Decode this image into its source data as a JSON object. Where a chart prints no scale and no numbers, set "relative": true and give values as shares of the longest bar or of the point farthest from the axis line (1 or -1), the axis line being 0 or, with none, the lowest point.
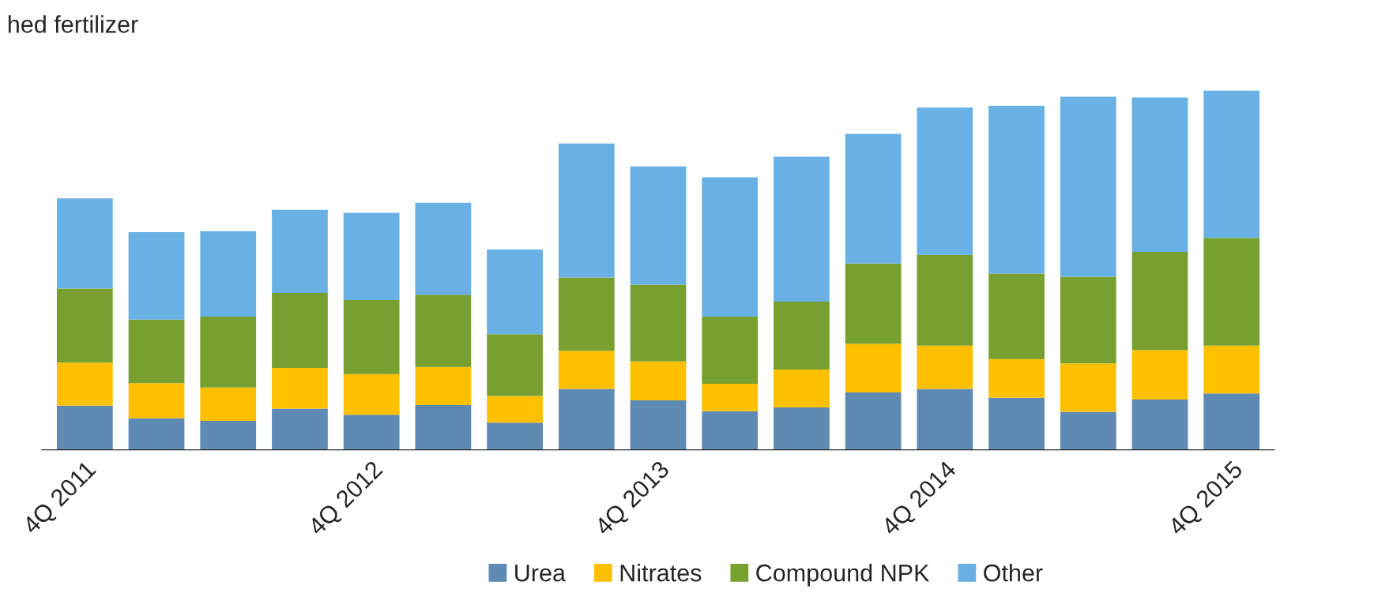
{
  "chart_data": {
    "type": "bar",
    "title": "hed fertilizer",
    "relative": true,
    "stacked": true,
    "legend": "bottom",
    "categories": [
      "4Q 2011",
      null,
      null,
      null,
      "4Q 2012",
      null,
      null,
      null,
      "4Q 2013",
      null,
      null,
      null,
      "4Q 2014",
      null,
      null,
      null,
      "4Q 2015"
    ],
    "series": [
      {
        "name": "Urea",
        "color": "#5f8ab4",
        "values": [
          0.123,
          0.088,
          0.081,
          0.115,
          0.098,
          0.125,
          0.076,
          0.17,
          0.138,
          0.108,
          0.118,
          0.16,
          0.17,
          0.145,
          0.106,
          0.14,
          0.157
        ]
      },
      {
        "name": "Nitrates",
        "color": "#ffc000",
        "values": [
          0.12,
          0.098,
          0.093,
          0.113,
          0.113,
          0.106,
          0.074,
          0.106,
          0.108,
          0.076,
          0.106,
          0.135,
          0.12,
          0.108,
          0.135,
          0.138,
          0.133
        ]
      },
      {
        "name": "Compound NPK",
        "color": "#77a030",
        "values": [
          0.206,
          0.177,
          0.197,
          0.209,
          0.206,
          0.201,
          0.172,
          0.204,
          0.214,
          0.187,
          0.189,
          0.224,
          0.253,
          0.238,
          0.241,
          0.273,
          0.3
        ]
      },
      {
        "name": "Other",
        "color": "#69b1e4",
        "values": [
          0.251,
          0.243,
          0.238,
          0.231,
          0.243,
          0.256,
          0.236,
          0.373,
          0.329,
          0.388,
          0.403,
          0.361,
          0.41,
          0.467,
          0.501,
          0.43,
          0.41
        ]
      }
    ]
  }
}
